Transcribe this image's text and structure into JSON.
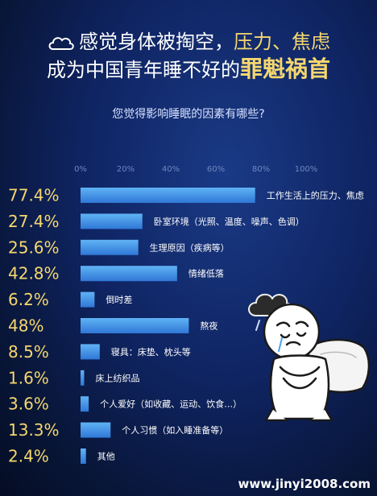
{
  "header": {
    "title_line1_prefix": "感觉身体被掏空，",
    "title_line1_highlight": "压力、焦虑",
    "title_line2_prefix": "成为中国青年睡不好的",
    "title_line2_highlight": "罪魁祸首"
  },
  "question": "您觉得影响睡眠的因素有哪些?",
  "watermark": "www.jinyi2008.com",
  "colors": {
    "bar_top": "#5fb3f5",
    "bar_bottom": "#2f77d6",
    "value_label": "#f5d76e",
    "tick_label": "#6f86bf",
    "highlight": "#f5d76e"
  },
  "chart_data": {
    "type": "bar",
    "orientation": "horizontal",
    "xlim": [
      0,
      100
    ],
    "x_ticks": [
      "0%",
      "20%",
      "40%",
      "60%",
      "80%",
      "100%"
    ],
    "value_labels": [
      "77.4%",
      "27.4%",
      "25.6%",
      "42.8%",
      "6.2%",
      "48%",
      "8.5%",
      "1.6%",
      "3.6%",
      "13.3%",
      "2.4%"
    ],
    "categories": [
      "工作生活上的压力、焦虑",
      "卧室环境（光照、温度、噪声、色调）",
      "生理原因（疾病等）",
      "情绪低落",
      "倒时差",
      "熬夜",
      "寝具：床垫、枕头等",
      "床上纺织品",
      "个人爱好（如收藏、运动、饮食…）",
      "个人习惯（如入睡准备等）",
      "其他"
    ],
    "values": [
      77.4,
      27.4,
      25.6,
      42.8,
      6.2,
      48,
      8.5,
      1.6,
      3.6,
      13.3,
      2.4
    ]
  }
}
